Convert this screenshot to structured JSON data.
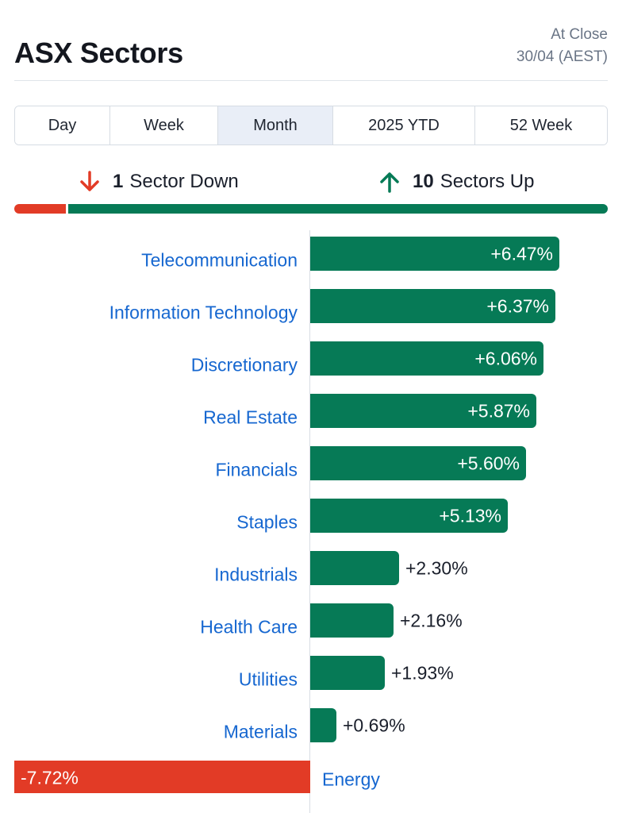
{
  "header": {
    "title": "ASX Sectors",
    "asof_line1": "At Close",
    "asof_line2": "30/04 (AEST)"
  },
  "tabs": [
    {
      "label": "Day",
      "active": false
    },
    {
      "label": "Week",
      "active": false
    },
    {
      "label": "Month",
      "active": true
    },
    {
      "label": "2025 YTD",
      "active": false
    },
    {
      "label": "52 Week",
      "active": false
    }
  ],
  "summary": {
    "down_count": "1",
    "down_label": "Sector Down",
    "up_count": "10",
    "up_label": "Sectors Up",
    "down_fraction": 0.0909,
    "up_fraction": 0.9091,
    "icons": {
      "down": "arrow-down-icon",
      "up": "arrow-up-icon"
    }
  },
  "colors": {
    "positive": "#067a56",
    "negative": "#e23b26",
    "link": "#1667d0",
    "tab_active": "#e9eef7"
  },
  "chart_data": {
    "type": "bar",
    "orientation": "horizontal",
    "categories": [
      "Telecommunication",
      "Information Technology",
      "Discretionary",
      "Real Estate",
      "Financials",
      "Staples",
      "Industrials",
      "Health Care",
      "Utilities",
      "Materials",
      "Energy"
    ],
    "values": [
      6.47,
      6.37,
      6.06,
      5.87,
      5.6,
      5.13,
      2.3,
      2.16,
      1.93,
      0.69,
      -7.72
    ],
    "labels": [
      "+6.47%",
      "+6.37%",
      "+6.06%",
      "+5.87%",
      "+5.60%",
      "+5.13%",
      "+2.30%",
      "+2.16%",
      "+1.93%",
      "+0.69%",
      "-7.72%"
    ],
    "unit": "%",
    "xlim": [
      -7.72,
      6.47
    ],
    "grid": false
  }
}
